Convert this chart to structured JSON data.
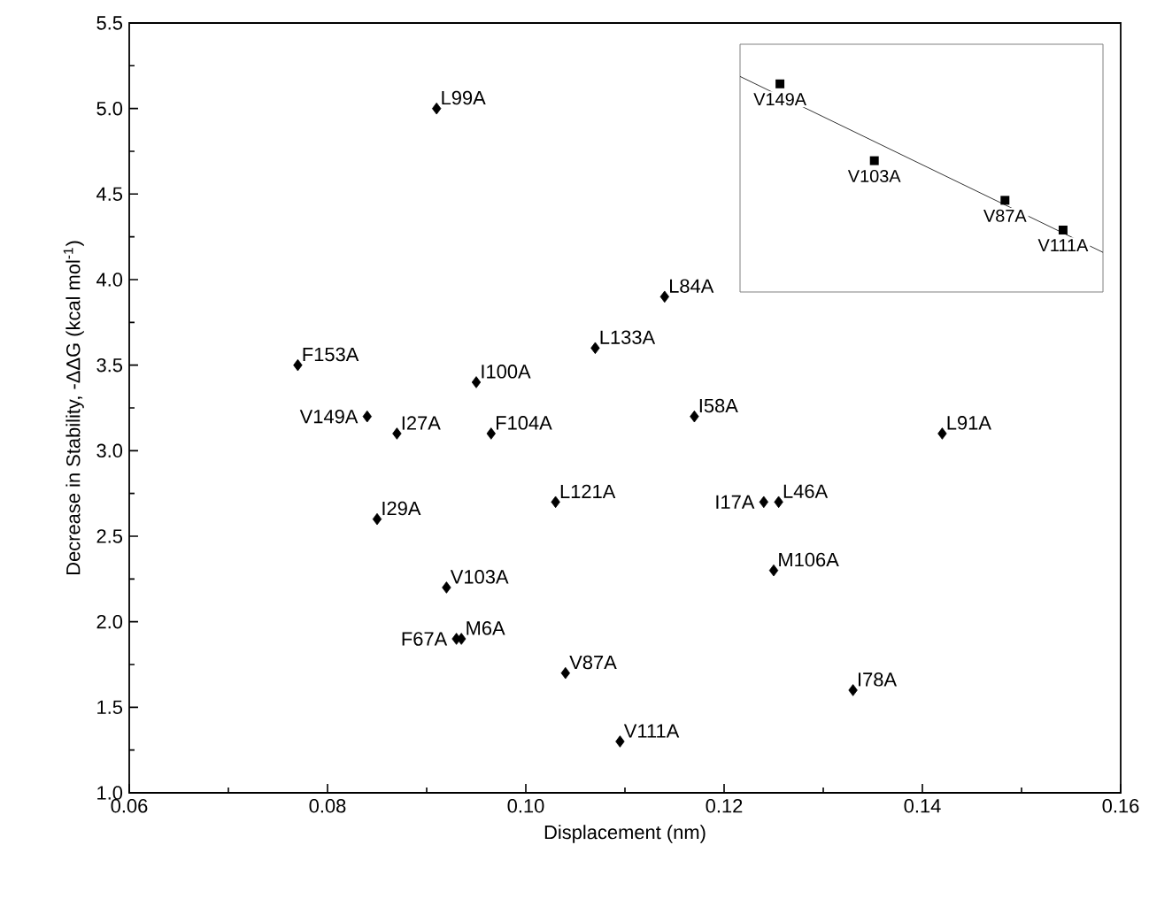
{
  "chart_data": [
    {
      "type": "scatter",
      "xlabel": "Displacement (nm)",
      "ylabel": "Decrease in Stability, -ΔΔG (kcal mol$^{-1}$)",
      "color": "#000000",
      "marker": "diamond",
      "x": [
        0.091,
        0.077,
        0.084,
        0.087,
        0.095,
        0.0965,
        0.107,
        0.114,
        0.117,
        0.142,
        0.085,
        0.103,
        0.124,
        0.1255,
        0.125,
        0.092,
        0.093,
        0.0935,
        0.104,
        0.1095,
        0.133
      ],
      "values": [
        5.0,
        3.5,
        3.2,
        3.1,
        3.4,
        3.1,
        3.6,
        3.9,
        3.2,
        3.1,
        2.6,
        2.7,
        2.7,
        2.7,
        2.3,
        2.2,
        1.9,
        1.9,
        1.7,
        1.3,
        1.6
      ],
      "annotations": [
        {
          "text": "L99A",
          "x": 0.091,
          "y": 5.0
        },
        {
          "text": "F153A",
          "x": 0.077,
          "y": 3.5
        },
        {
          "text": "V149A",
          "x": 0.084,
          "y": 3.2
        },
        {
          "text": "I27A",
          "x": 0.087,
          "y": 3.1
        },
        {
          "text": "I100A",
          "x": 0.095,
          "y": 3.4
        },
        {
          "text": "F104A",
          "x": 0.0965,
          "y": 3.1
        },
        {
          "text": "L133A",
          "x": 0.107,
          "y": 3.6
        },
        {
          "text": "L84A",
          "x": 0.114,
          "y": 3.9
        },
        {
          "text": "I58A",
          "x": 0.117,
          "y": 3.2
        },
        {
          "text": "L91A",
          "x": 0.142,
          "y": 3.1
        },
        {
          "text": "I29A",
          "x": 0.085,
          "y": 2.6
        },
        {
          "text": "L121A",
          "x": 0.103,
          "y": 2.7
        },
        {
          "text": "I17A",
          "x": 0.124,
          "y": 2.7
        },
        {
          "text": "L46A",
          "x": 0.1255,
          "y": 2.7
        },
        {
          "text": "M106A",
          "x": 0.125,
          "y": 2.3
        },
        {
          "text": "V103A",
          "x": 0.092,
          "y": 2.2
        },
        {
          "text": "F67A",
          "x": 0.093,
          "y": 1.9
        },
        {
          "text": "M6A",
          "x": 0.0935,
          "y": 1.9
        },
        {
          "text": "V87A",
          "x": 0.104,
          "y": 1.7
        },
        {
          "text": "V111A",
          "x": 0.1095,
          "y": 1.3
        },
        {
          "text": "I78A",
          "x": 0.133,
          "y": 1.6
        }
      ],
      "xlim": [
        0.06,
        0.16
      ],
      "ylim": [
        1.0,
        5.5
      ],
      "xticks": [
        {
          "value": 0.06,
          "label": "0.06"
        },
        {
          "value": 0.08,
          "label": "0.08"
        },
        {
          "value": 0.1,
          "label": "0.10"
        },
        {
          "value": 0.12,
          "label": "0.12"
        },
        {
          "value": 0.14,
          "label": "0.14"
        },
        {
          "value": 0.16,
          "label": "0.16"
        }
      ],
      "yticks": [
        {
          "value": 1.0,
          "label": "1.0"
        },
        {
          "value": 1.5,
          "label": "1.5"
        },
        {
          "value": 2.0,
          "label": "2.0"
        },
        {
          "value": 2.5,
          "label": "2.5"
        },
        {
          "value": 3.0,
          "label": "3.0"
        },
        {
          "value": 3.5,
          "label": "3.5"
        },
        {
          "value": 4.0,
          "label": "4.0"
        },
        {
          "value": 4.5,
          "label": "4.5"
        },
        {
          "value": 5.0,
          "label": "5.0"
        },
        {
          "value": 5.5,
          "label": "5.5"
        }
      ]
    },
    {
      "type": "other",
      "annotations": [
        "V149A",
        "V103A",
        "V87A",
        "V111A"
      ]
    }
  ]
}
